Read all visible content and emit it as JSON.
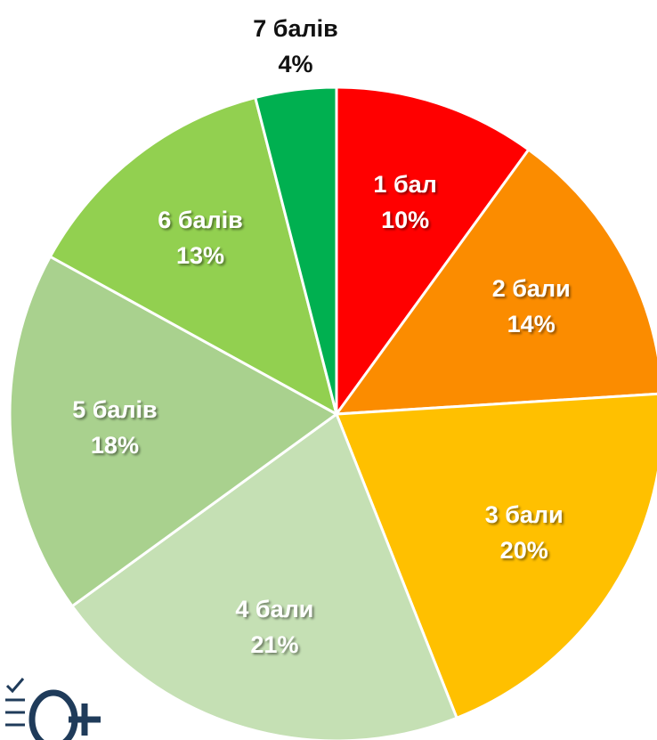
{
  "chart_data": {
    "type": "pie",
    "categories": [
      "1 бал",
      "2 бали",
      "3 бали",
      "4 бали",
      "5 балів",
      "6 балів",
      "7 балів"
    ],
    "values": [
      10,
      14,
      20,
      21,
      18,
      13,
      4
    ],
    "value_labels": [
      "10%",
      "14%",
      "20%",
      "21%",
      "18%",
      "13%",
      "4%"
    ],
    "colors": [
      "#ff0000",
      "#fb8c00",
      "#ffc000",
      "#c5e0b4",
      "#a9d18e",
      "#92d050",
      "#00b050"
    ]
  }
}
